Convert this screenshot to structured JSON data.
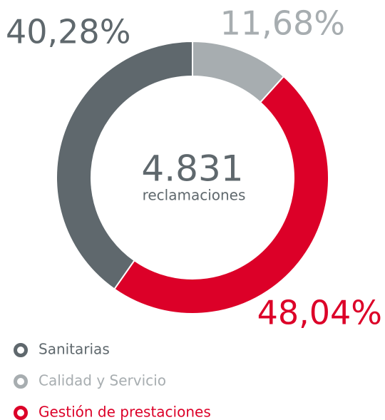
{
  "chart_data": {
    "type": "donut",
    "categories": [
      "Sanitarias",
      "Calidad y Servicio",
      "Gestión de prestaciones"
    ],
    "values": [
      40.28,
      11.68,
      48.04
    ],
    "value_labels": [
      "40,28%",
      "11,68%",
      "48,04%"
    ],
    "colors": [
      "#5f686d",
      "#a7adb0",
      "#dc0028"
    ],
    "center": {
      "value": 4831,
      "label": "4.831",
      "caption": "reclamaciones"
    }
  }
}
